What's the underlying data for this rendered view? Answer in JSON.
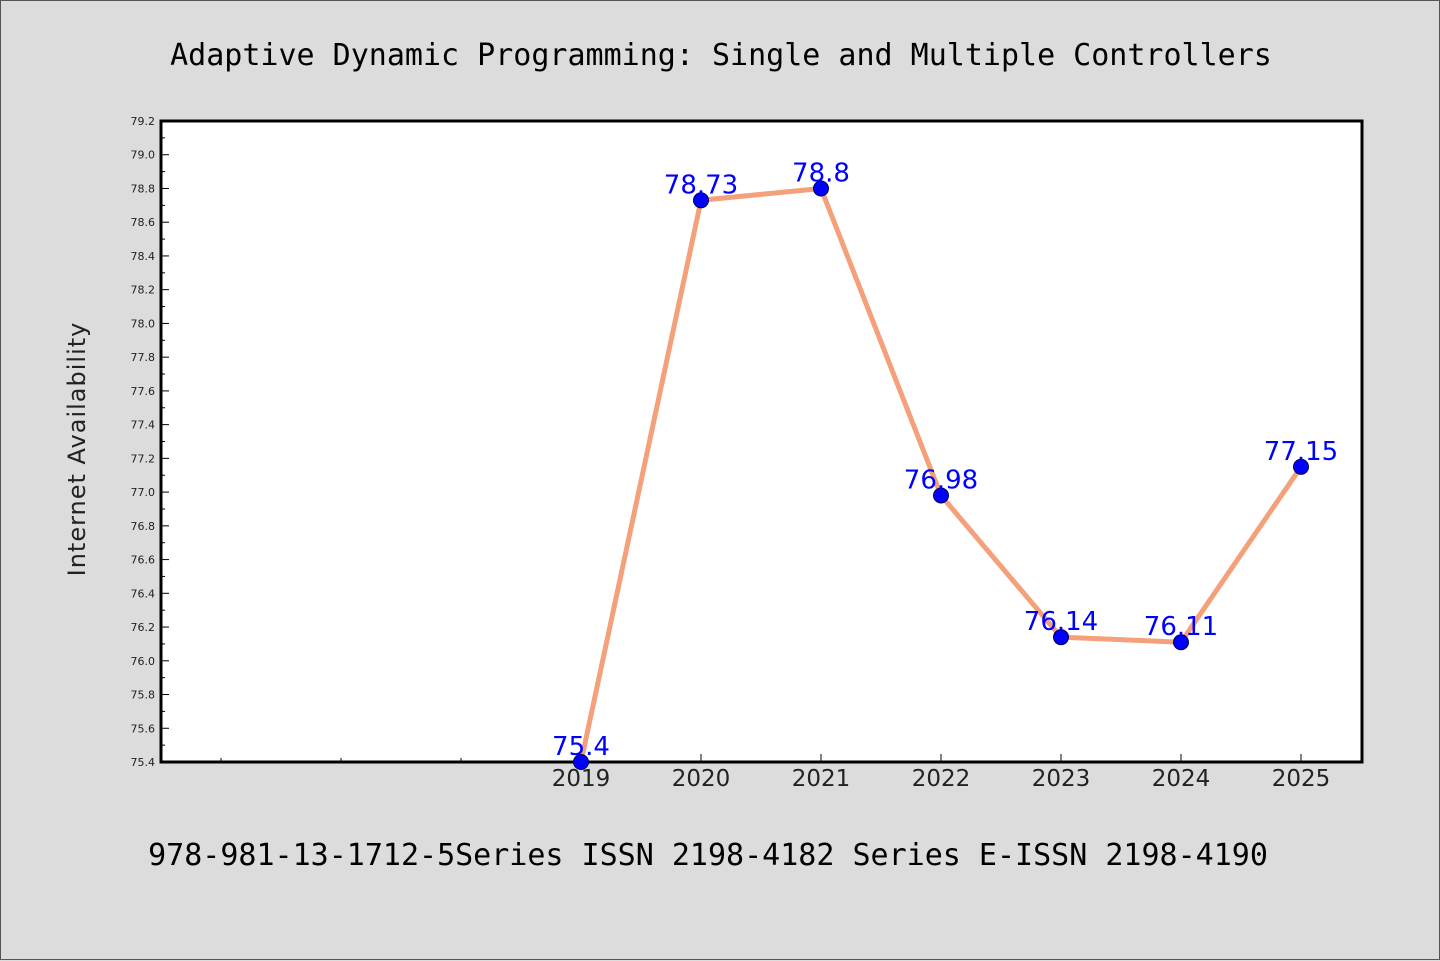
{
  "chart_data": {
    "type": "line",
    "title": "Adaptive Dynamic Programming: Single and Multiple Controllers",
    "xlabel": "",
    "ylabel": "Internet Availability",
    "categories": [
      "2019",
      "2020",
      "2021",
      "2022",
      "2023",
      "2024",
      "2025"
    ],
    "values": [
      75.4,
      78.73,
      78.8,
      76.98,
      76.14,
      76.11,
      77.15
    ],
    "data_labels": [
      "75.4",
      "78.73",
      "78.8",
      "76.98",
      "76.14",
      "76.11",
      "77.15"
    ],
    "ylim": [
      75.4,
      79.2
    ],
    "yticks": [
      "75.4",
      "75.6",
      "75.8",
      "76.0",
      "76.2",
      "76.4",
      "76.6",
      "76.8",
      "77.0",
      "77.2",
      "77.4",
      "77.6",
      "77.8",
      "78.0",
      "78.2",
      "78.4",
      "78.6",
      "78.8",
      "79.0",
      "79.2"
    ],
    "grid": false,
    "line_color": "#f4a07a",
    "marker_color": "#0000ff",
    "label_color": "#0000ff"
  },
  "footer": "978-981-13-1712-5Series ISSN 2198-4182 Series E-ISSN 2198-4190"
}
